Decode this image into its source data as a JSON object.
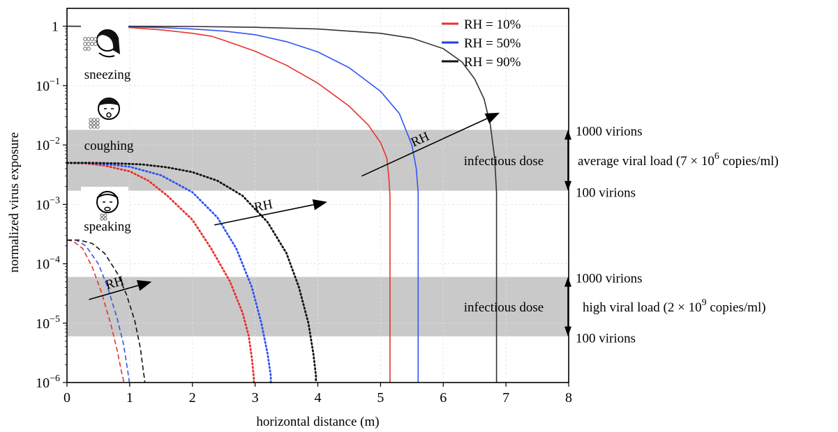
{
  "chart_data": {
    "type": "line",
    "xlabel": "horizontal distance (m)",
    "ylabel": "normalized virus exposure",
    "xlim": [
      0,
      8
    ],
    "ylim": [
      1e-06,
      2
    ],
    "yscale": "log",
    "grid": true,
    "x_ticks": [
      "0",
      "1",
      "2",
      "3",
      "4",
      "5",
      "6",
      "7",
      "8"
    ],
    "y_ticks": [
      {
        "base": "1",
        "exp": ""
      },
      {
        "base": "10",
        "exp": "−1"
      },
      {
        "base": "10",
        "exp": "−2"
      },
      {
        "base": "10",
        "exp": "−3"
      },
      {
        "base": "10",
        "exp": "−4"
      },
      {
        "base": "10",
        "exp": "−5"
      },
      {
        "base": "10",
        "exp": "−6"
      }
    ],
    "legend": {
      "position": "top-right",
      "entries": [
        {
          "label": "RH = 10%",
          "color": "#e8312a"
        },
        {
          "label": "RH = 50%",
          "color": "#1f3fe0"
        },
        {
          "label": "RH = 90%",
          "color": "#111111"
        }
      ]
    },
    "series": [
      {
        "activity": "sneezing",
        "rh": "10%",
        "style": "solid",
        "color": "#e8312a",
        "x": [
          0,
          0.5,
          1.0,
          1.5,
          2.0,
          2.3,
          2.5,
          3.0,
          3.5,
          4.0,
          4.5,
          4.8,
          5.0,
          5.1,
          5.13,
          5.15,
          5.15
        ],
        "y": [
          1,
          0.99,
          0.95,
          0.87,
          0.76,
          0.68,
          0.58,
          0.38,
          0.22,
          0.11,
          0.045,
          0.022,
          0.011,
          0.006,
          0.003,
          0.0014,
          1e-06
        ]
      },
      {
        "activity": "sneezing",
        "rh": "50%",
        "style": "solid",
        "color": "#3055f0",
        "x": [
          0,
          0.5,
          1.0,
          1.5,
          2.0,
          2.5,
          3.0,
          3.5,
          4.0,
          4.5,
          5.0,
          5.3,
          5.5,
          5.57,
          5.6,
          5.6
        ],
        "y": [
          1,
          0.995,
          0.98,
          0.95,
          0.9,
          0.83,
          0.72,
          0.55,
          0.37,
          0.2,
          0.08,
          0.034,
          0.01,
          0.004,
          0.0016,
          1e-06
        ]
      },
      {
        "activity": "sneezing",
        "rh": "90%",
        "style": "solid",
        "color": "#333333",
        "x": [
          0,
          1.0,
          2.0,
          3.0,
          4.0,
          5.0,
          5.5,
          6.0,
          6.3,
          6.5,
          6.65,
          6.75,
          6.82,
          6.85,
          6.85
        ],
        "y": [
          1,
          1,
          0.99,
          0.96,
          0.9,
          0.76,
          0.63,
          0.42,
          0.25,
          0.13,
          0.06,
          0.022,
          0.006,
          0.0016,
          1e-06
        ]
      },
      {
        "activity": "coughing",
        "rh": "10%",
        "style": "dotted",
        "color": "#e8312a",
        "x": [
          0,
          0.3,
          0.6,
          1.0,
          1.3,
          1.6,
          2.0,
          2.3,
          2.6,
          2.8,
          2.9,
          2.95,
          2.98,
          2.98
        ],
        "y": [
          0.005,
          0.0049,
          0.0045,
          0.0036,
          0.0025,
          0.0014,
          0.00055,
          0.00018,
          5e-05,
          1.5e-05,
          6e-06,
          2.5e-06,
          1.2e-06,
          1e-06
        ]
      },
      {
        "activity": "coughing",
        "rh": "50%",
        "style": "dotted",
        "color": "#3055f0",
        "x": [
          0,
          0.3,
          0.6,
          1.0,
          1.5,
          2.0,
          2.4,
          2.7,
          2.95,
          3.1,
          3.2,
          3.25,
          3.25
        ],
        "y": [
          0.005,
          0.005,
          0.0048,
          0.0043,
          0.0031,
          0.0016,
          0.0006,
          0.00018,
          4e-05,
          1e-05,
          3e-06,
          1.3e-06,
          1e-06
        ]
      },
      {
        "activity": "coughing",
        "rh": "90%",
        "style": "dotted",
        "color": "#111111",
        "x": [
          0,
          0.4,
          0.8,
          1.2,
          1.6,
          2.0,
          2.4,
          2.8,
          3.2,
          3.5,
          3.7,
          3.85,
          3.93,
          3.97,
          3.97
        ],
        "y": [
          0.005,
          0.005,
          0.0049,
          0.0047,
          0.0042,
          0.0035,
          0.0025,
          0.0014,
          0.0005,
          0.00015,
          4e-05,
          1e-05,
          3e-06,
          1.3e-06,
          1e-06
        ]
      },
      {
        "activity": "speaking",
        "rh": "10%",
        "style": "dashed",
        "color": "#e8312a",
        "x": [
          0,
          0.1,
          0.25,
          0.4,
          0.55,
          0.7,
          0.8,
          0.87,
          0.9,
          0.9
        ],
        "y": [
          0.00025,
          0.00024,
          0.00018,
          9e-05,
          3.3e-05,
          9.5e-06,
          3.5e-06,
          1.5e-06,
          1.1e-06,
          1e-06
        ]
      },
      {
        "activity": "speaking",
        "rh": "50%",
        "style": "dashed",
        "color": "#3055f0",
        "x": [
          0,
          0.15,
          0.3,
          0.5,
          0.65,
          0.8,
          0.9,
          0.96,
          0.99,
          0.99
        ],
        "y": [
          0.00025,
          0.00025,
          0.0002,
          0.0001,
          4e-05,
          1.2e-05,
          4.5e-06,
          1.8e-06,
          1.1e-06,
          1e-06
        ]
      },
      {
        "activity": "speaking",
        "rh": "90%",
        "style": "dashed",
        "color": "#111111",
        "x": [
          0,
          0.2,
          0.4,
          0.6,
          0.8,
          0.95,
          1.08,
          1.17,
          1.22,
          1.24,
          1.24
        ],
        "y": [
          0.00025,
          0.00025,
          0.00022,
          0.00015,
          7e-05,
          3e-05,
          1.1e-05,
          3.8e-06,
          1.5e-06,
          1.1e-06,
          1e-06
        ]
      }
    ],
    "bands": [
      {
        "id": "average",
        "y_low": 0.0017,
        "y_high": 0.018,
        "label": "infectious dose",
        "top_label": "1000 virions",
        "bottom_label": "100 virions",
        "viral_load_prefix": "average viral load (7 × 10",
        "viral_load_exp": "6",
        "viral_load_suffix": " copies/ml)"
      },
      {
        "id": "high",
        "y_low": 6e-06,
        "y_high": 6e-05,
        "label": "infectious dose",
        "top_label": "1000 virions",
        "bottom_label": "100 virions",
        "viral_load_prefix": "high viral load (2 × 10",
        "viral_load_exp": "9",
        "viral_load_suffix": " copies/ml)"
      }
    ],
    "activities": [
      {
        "id": "sneezing",
        "label": "sneezing"
      },
      {
        "id": "coughing",
        "label": "coughing"
      },
      {
        "id": "speaking",
        "label": "speaking"
      }
    ],
    "rh_arrows": [
      {
        "label": "RH",
        "from": [
          0.35,
          2.5e-05
        ],
        "to": [
          1.35,
          5e-05
        ]
      },
      {
        "label": "RH",
        "from": [
          2.35,
          0.00045
        ],
        "to": [
          4.15,
          0.0011
        ]
      },
      {
        "label": "RH",
        "from": [
          4.7,
          0.003
        ],
        "to": [
          6.9,
          0.035
        ]
      }
    ]
  }
}
